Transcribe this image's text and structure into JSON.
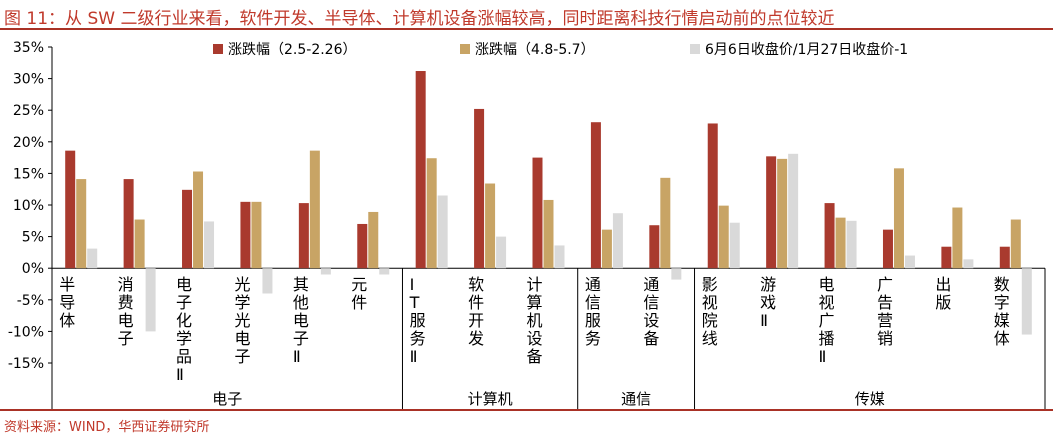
{
  "title": "图 11：从 SW 二级行业来看，软件开发、半导体、计算机设备涨幅较高，同时距离科技行情启动前的点位较近",
  "source": "资料来源：WIND，华西证券研究所",
  "colors": {
    "accent": "#a93226",
    "s1": "#a93a2e",
    "s2": "#c8a465",
    "s3": "#d9d9d9"
  },
  "chart_data": {
    "type": "bar",
    "title": "",
    "xlabel": "",
    "ylabel": "",
    "ylim": [
      -15,
      35
    ],
    "yticks": [
      "35%",
      "30%",
      "25%",
      "20%",
      "15%",
      "10%",
      "5%",
      "0%",
      "-5%",
      "-10%",
      "-15%"
    ],
    "grid": false,
    "legend_position": "top",
    "categories": [
      "半导体",
      "消费电子",
      "电子化学品Ⅱ",
      "光学光电子",
      "其他电子Ⅱ",
      "元件",
      "IT服务Ⅱ",
      "软件开发",
      "计算机设备",
      "通信服务",
      "通信设备",
      "影视院线",
      "游戏Ⅱ",
      "电视广播Ⅱ",
      "广告营销",
      "出版",
      "数字媒体"
    ],
    "groups": [
      {
        "label": "电子",
        "start": 0,
        "end": 5
      },
      {
        "label": "计算机",
        "start": 6,
        "end": 8
      },
      {
        "label": "通信",
        "start": 9,
        "end": 10
      },
      {
        "label": "传媒",
        "start": 11,
        "end": 16
      }
    ],
    "series": [
      {
        "name": "涨跌幅（2.5-2.26）",
        "color": "#a93a2e",
        "values": [
          18.6,
          14.1,
          12.4,
          10.5,
          10.3,
          7.0,
          31.2,
          25.2,
          17.5,
          23.1,
          6.8,
          22.9,
          17.7,
          10.3,
          6.1,
          3.4,
          3.4
        ]
      },
      {
        "name": "涨跌幅（4.8-5.7）",
        "color": "#c8a465",
        "values": [
          14.1,
          7.7,
          15.3,
          10.5,
          18.6,
          8.9,
          17.4,
          13.4,
          10.8,
          6.1,
          14.3,
          9.9,
          17.3,
          8.0,
          15.8,
          9.6,
          7.7
        ]
      },
      {
        "name": "6月6日收盘价/1月27日收盘价-1",
        "color": "#d9d9d9",
        "values": [
          3.1,
          -10.0,
          7.4,
          -4.0,
          -1.0,
          -1.0,
          11.5,
          5.0,
          3.6,
          8.7,
          -1.8,
          7.2,
          18.1,
          7.5,
          2.0,
          1.4,
          -10.5
        ]
      }
    ]
  }
}
